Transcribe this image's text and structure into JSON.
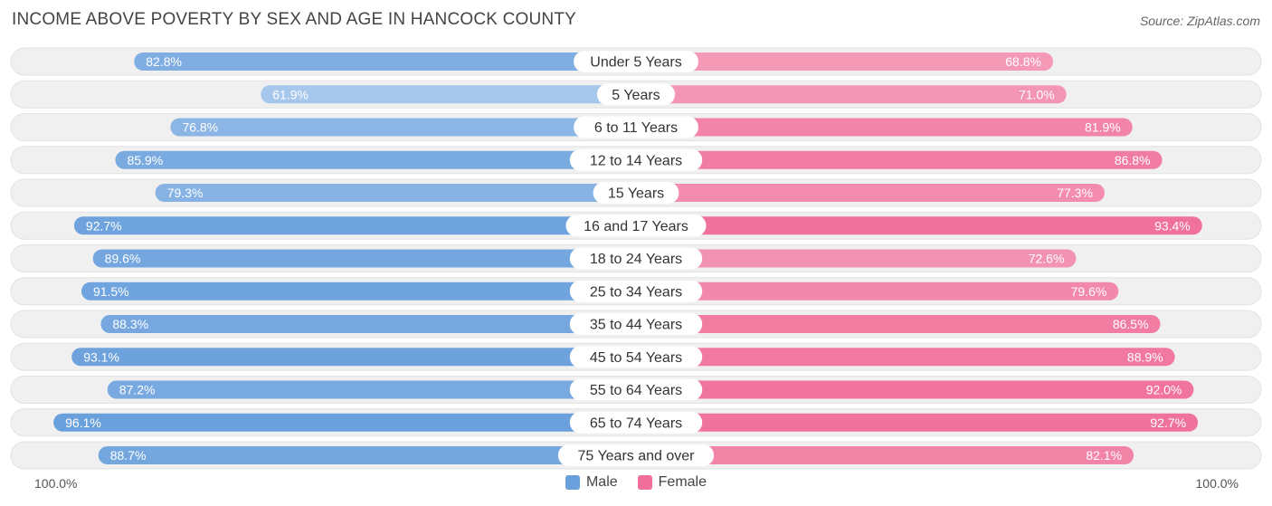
{
  "title": "INCOME ABOVE POVERTY BY SEX AND AGE IN HANCOCK COUNTY",
  "source": "Source: ZipAtlas.com",
  "axis": {
    "left_label": "100.0%",
    "right_label": "100.0%"
  },
  "legend": {
    "male": "Male",
    "female": "Female"
  },
  "colors": {
    "male_dark": "#6aa0dc",
    "male_light": "#a9c9ed",
    "female_dark": "#f06f9a",
    "female_light": "#f5a8c1",
    "track": "#f0f0f0"
  },
  "chart_data": {
    "type": "bar",
    "orientation": "horizontal-diverging",
    "title": "INCOME ABOVE POVERTY BY SEX AND AGE IN HANCOCK COUNTY",
    "xlim": [
      0,
      100
    ],
    "categories": [
      "Under 5 Years",
      "5 Years",
      "6 to 11 Years",
      "12 to 14 Years",
      "15 Years",
      "16 and 17 Years",
      "18 to 24 Years",
      "25 to 34 Years",
      "35 to 44 Years",
      "45 to 54 Years",
      "55 to 64 Years",
      "65 to 74 Years",
      "75 Years and over"
    ],
    "series": [
      {
        "name": "Male",
        "values": [
          82.8,
          61.9,
          76.8,
          85.9,
          79.3,
          92.7,
          89.6,
          91.5,
          88.3,
          93.1,
          87.2,
          96.1,
          88.7
        ],
        "labels": [
          "82.8%",
          "61.9%",
          "76.8%",
          "85.9%",
          "79.3%",
          "92.7%",
          "89.6%",
          "91.5%",
          "88.3%",
          "93.1%",
          "87.2%",
          "96.1%",
          "88.7%"
        ]
      },
      {
        "name": "Female",
        "values": [
          68.8,
          71.0,
          81.9,
          86.8,
          77.3,
          93.4,
          72.6,
          79.6,
          86.5,
          88.9,
          92.0,
          92.7,
          82.1
        ],
        "labels": [
          "68.8%",
          "71.0%",
          "81.9%",
          "86.8%",
          "77.3%",
          "93.4%",
          "72.6%",
          "79.6%",
          "86.5%",
          "88.9%",
          "92.0%",
          "92.7%",
          "82.1%"
        ]
      }
    ]
  }
}
